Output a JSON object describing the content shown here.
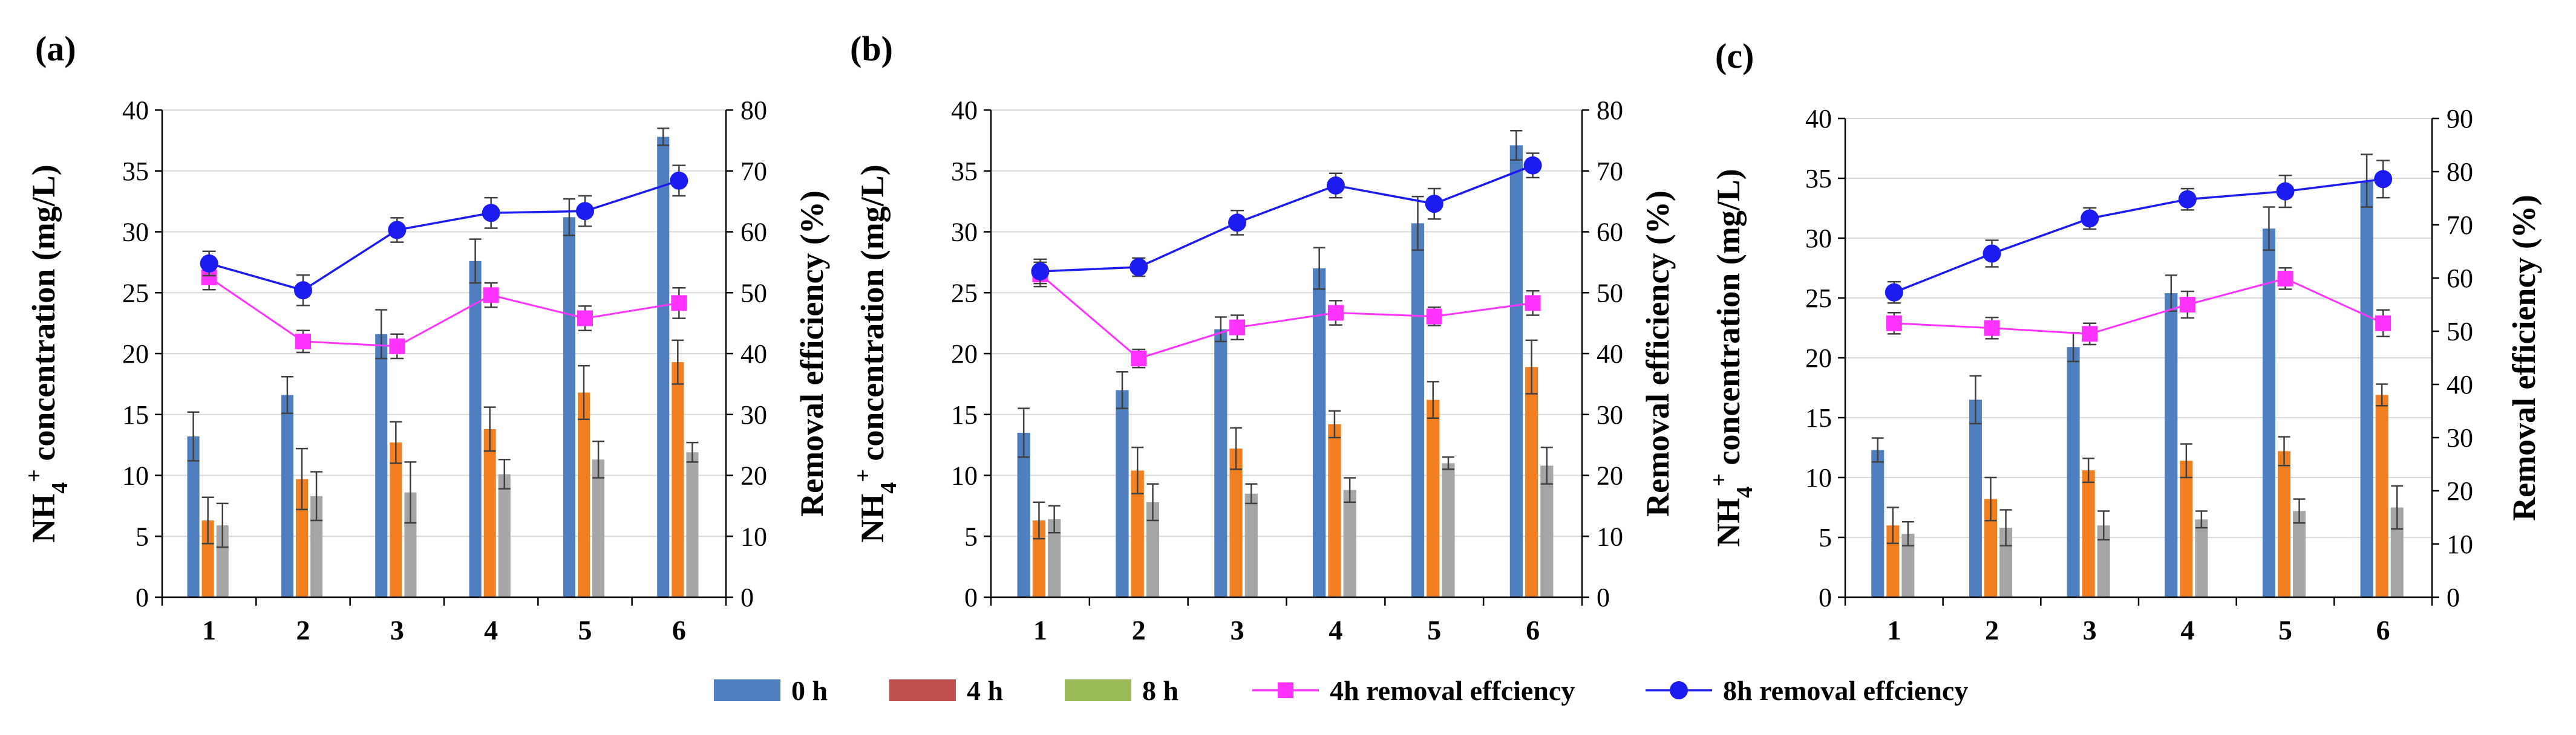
{
  "colors": {
    "bar_0h": "#4f7fbf",
    "bar_4h": "#f28020",
    "bar_8h": "#a6a6a6",
    "line_4h": "#ff33ff",
    "line_8h": "#1c1cf0",
    "axis": "#000000",
    "grid": "#d9d9d9",
    "error": "#404040",
    "legend_4h_patch": "#c0504d",
    "legend_8h_patch": "#9bbb59"
  },
  "legend": {
    "items": [
      {
        "label": "0 h",
        "kind": "patch",
        "color": "#4f7fbf"
      },
      {
        "label": "4 h",
        "kind": "patch",
        "color": "#c0504d"
      },
      {
        "label": "8 h",
        "kind": "patch",
        "color": "#9bbb59"
      },
      {
        "label": "4h removal effciency",
        "kind": "square-line",
        "color": "#ff33ff"
      },
      {
        "label": "8h removal effciency",
        "kind": "circle-line",
        "color": "#1c1cf0"
      }
    ]
  },
  "chart_data": [
    {
      "panel_label": "(a)",
      "type": "bar",
      "categories": [
        "1",
        "2",
        "3",
        "4",
        "5",
        "6"
      ],
      "ylabel_main": "NH",
      "ylabel_sub": "4",
      "ylabel_sup": "+",
      "ylabel_rest": " concentration (mg/L)",
      "y2label": "Removal efficiency (%)",
      "ylim": [
        0,
        40
      ],
      "yticks": [
        0,
        5,
        10,
        15,
        20,
        25,
        30,
        35,
        40
      ],
      "y2lim": [
        0,
        80
      ],
      "y2ticks": [
        0,
        10,
        20,
        30,
        40,
        50,
        60,
        70,
        80
      ],
      "grid": true,
      "series": [
        {
          "name": "0 h",
          "values": [
            13.2,
            16.6,
            21.6,
            27.6,
            31.2,
            37.8
          ],
          "errors": [
            2.0,
            1.5,
            2.0,
            1.8,
            1.5,
            0.7
          ]
        },
        {
          "name": "4 h",
          "values": [
            6.3,
            9.7,
            12.7,
            13.8,
            16.8,
            19.3
          ],
          "errors": [
            1.9,
            2.5,
            1.7,
            1.8,
            2.2,
            1.8
          ]
        },
        {
          "name": "8 h",
          "values": [
            5.9,
            8.3,
            8.6,
            10.1,
            11.3,
            11.9
          ],
          "errors": [
            1.8,
            2.0,
            2.5,
            1.2,
            1.5,
            0.8
          ]
        }
      ],
      "lines": [
        {
          "name": "4h removal effciency",
          "values": [
            52.5,
            42.0,
            41.2,
            49.6,
            45.8,
            48.3
          ],
          "errors": [
            2.0,
            1.8,
            2.0,
            2.0,
            2.0,
            2.5
          ]
        },
        {
          "name": "8h removal effciency",
          "values": [
            54.8,
            50.4,
            60.3,
            63.1,
            63.4,
            68.4
          ],
          "errors": [
            2.0,
            2.5,
            2.0,
            2.5,
            2.5,
            2.5
          ]
        }
      ]
    },
    {
      "panel_label": "(b)",
      "type": "bar",
      "categories": [
        "1",
        "2",
        "3",
        "4",
        "5",
        "6"
      ],
      "ylabel_main": "NH",
      "ylabel_sub": "4",
      "ylabel_sup": "+",
      "ylabel_rest": " concentration (mg/L)",
      "y2label": "Removal efficiency (%)",
      "ylim": [
        0,
        40
      ],
      "yticks": [
        0,
        5,
        10,
        15,
        20,
        25,
        30,
        35,
        40
      ],
      "y2lim": [
        0,
        80
      ],
      "y2ticks": [
        0,
        10,
        20,
        30,
        40,
        50,
        60,
        70,
        80
      ],
      "grid": true,
      "series": [
        {
          "name": "0 h",
          "values": [
            13.5,
            17.0,
            22.0,
            27.0,
            30.7,
            37.1
          ],
          "errors": [
            2.0,
            1.5,
            1.0,
            1.7,
            2.2,
            1.2
          ]
        },
        {
          "name": "4 h",
          "values": [
            6.3,
            10.4,
            12.2,
            14.2,
            16.2,
            18.9
          ],
          "errors": [
            1.5,
            1.9,
            1.7,
            1.1,
            1.5,
            2.2
          ]
        },
        {
          "name": "8 h",
          "values": [
            6.4,
            7.8,
            8.5,
            8.8,
            11.0,
            10.8
          ],
          "errors": [
            1.1,
            1.5,
            0.8,
            1.0,
            0.5,
            1.5
          ]
        }
      ],
      "lines": [
        {
          "name": "4h removal effciency",
          "values": [
            53.0,
            39.2,
            44.3,
            46.7,
            46.1,
            48.3
          ],
          "errors": [
            2.0,
            1.5,
            2.0,
            2.0,
            1.5,
            2.0
          ]
        },
        {
          "name": "8h removal effciency",
          "values": [
            53.5,
            54.2,
            61.5,
            67.6,
            64.6,
            70.9
          ],
          "errors": [
            2.0,
            1.5,
            2.0,
            2.0,
            2.5,
            2.0
          ]
        }
      ]
    },
    {
      "panel_label": "(c)",
      "type": "bar",
      "categories": [
        "1",
        "2",
        "3",
        "4",
        "5",
        "6"
      ],
      "ylabel_main": "NH",
      "ylabel_sub": "4",
      "ylabel_sup": "+",
      "ylabel_rest": " concentration (mg/L)",
      "y2label": "Removal efficiency (%)",
      "ylim": [
        0,
        40
      ],
      "yticks": [
        0,
        5,
        10,
        15,
        20,
        25,
        30,
        35,
        40
      ],
      "y2lim": [
        0,
        90
      ],
      "y2ticks": [
        0,
        10,
        20,
        30,
        40,
        50,
        60,
        70,
        80,
        90
      ],
      "grid": true,
      "series": [
        {
          "name": "0 h",
          "values": [
            12.3,
            16.5,
            20.9,
            25.4,
            30.8,
            34.8
          ],
          "errors": [
            1.0,
            2.0,
            1.2,
            1.5,
            1.8,
            2.2
          ]
        },
        {
          "name": "4 h",
          "values": [
            6.0,
            8.2,
            10.6,
            11.4,
            12.2,
            16.9
          ],
          "errors": [
            1.5,
            1.8,
            1.0,
            1.4,
            1.2,
            0.9
          ]
        },
        {
          "name": "8 h",
          "values": [
            5.3,
            5.8,
            6.0,
            6.5,
            7.2,
            7.5
          ],
          "errors": [
            1.0,
            1.5,
            1.2,
            0.7,
            1.0,
            1.8
          ]
        }
      ],
      "lines": [
        {
          "name": "4h removal effciency",
          "values": [
            51.5,
            50.6,
            49.5,
            55.0,
            59.9,
            51.5
          ],
          "errors": [
            2.0,
            2.0,
            2.0,
            2.5,
            2.0,
            2.5
          ]
        },
        {
          "name": "8h removal effciency",
          "values": [
            57.3,
            64.6,
            71.2,
            74.8,
            76.3,
            78.6
          ],
          "errors": [
            2.0,
            2.5,
            2.0,
            2.0,
            3.0,
            3.5
          ]
        }
      ]
    }
  ]
}
